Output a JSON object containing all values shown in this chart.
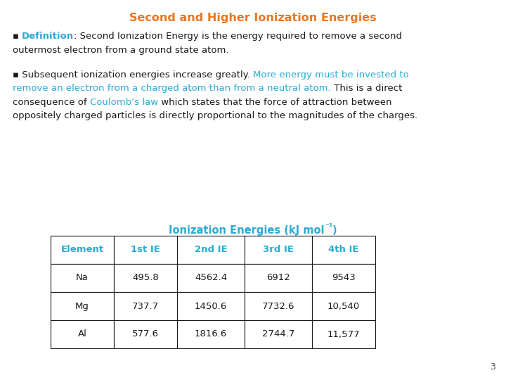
{
  "title": "Second and Higher Ionization Energies",
  "title_color": "#E87722",
  "background_color": "#FFFFFF",
  "bullet": "▪",
  "def_label_color": "#29ABD4",
  "def_text_color": "#1a1a1a",
  "para_color_black": "#1a1a1a",
  "para_color_blue": "#29ABD4",
  "table_title_color": "#29ABD4",
  "table_headers": [
    "Element",
    "1st IE",
    "2nd IE",
    "3rd IE",
    "4th IE"
  ],
  "table_header_color": "#29ABD4",
  "table_rows": [
    [
      "Na",
      "495.8",
      "4562.4",
      "6912",
      "9543"
    ],
    [
      "Mg",
      "737.7",
      "1450.6",
      "7732.6",
      "10,540"
    ],
    [
      "Al",
      "577.6",
      "1816.6",
      "2744.7",
      "11,577"
    ]
  ],
  "table_text_color": "#1a1a1a",
  "table_border_color": "#1a1a1a",
  "page_number": "3",
  "font_size": 9.5,
  "title_font_size": 11.5,
  "table_font_size": 9.5
}
